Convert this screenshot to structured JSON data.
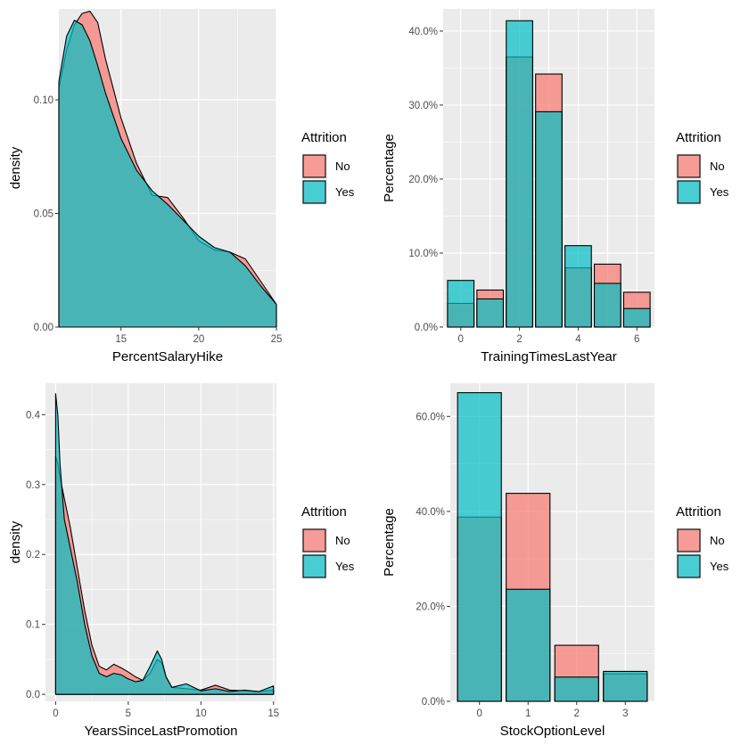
{
  "colors": {
    "panel_bg": "#ebebeb",
    "grid_major": "#ffffff",
    "no_fill": "#F8766D",
    "yes_fill": "#00BFC4",
    "outline": "#000000",
    "tick_text": "#4d4d4d"
  },
  "chart_data": [
    {
      "type": "area",
      "subtype": "density",
      "xlabel": "PercentSalaryHike",
      "ylabel": "density",
      "xlim": [
        11,
        25
      ],
      "ylim": [
        0,
        0.14
      ],
      "x_ticks": [
        15,
        20,
        25
      ],
      "y_ticks": [
        0.0,
        0.05,
        0.1
      ],
      "y_tick_labels": [
        "0.00",
        "0.05",
        "0.10"
      ],
      "legend": {
        "title": "Attrition",
        "position": "right",
        "labels": [
          "No",
          "Yes"
        ]
      },
      "series": [
        {
          "name": "No",
          "x": [
            11,
            11.5,
            12,
            12.5,
            13,
            13.5,
            14,
            15,
            16,
            17,
            18,
            19,
            20,
            21,
            22,
            23,
            24,
            25
          ],
          "values": [
            0.105,
            0.122,
            0.133,
            0.138,
            0.139,
            0.134,
            0.118,
            0.092,
            0.072,
            0.058,
            0.057,
            0.048,
            0.038,
            0.034,
            0.033,
            0.03,
            0.02,
            0.01
          ]
        },
        {
          "name": "Yes",
          "x": [
            11,
            11.5,
            12,
            12.5,
            13,
            13.5,
            14,
            15,
            16,
            17,
            18,
            19,
            20,
            21,
            22,
            23,
            24,
            25
          ],
          "values": [
            0.108,
            0.128,
            0.135,
            0.133,
            0.126,
            0.115,
            0.103,
            0.083,
            0.069,
            0.06,
            0.054,
            0.047,
            0.04,
            0.035,
            0.033,
            0.027,
            0.018,
            0.01
          ]
        }
      ]
    },
    {
      "type": "bar",
      "xlabel": "TrainingTimesLastYear",
      "ylabel": "Percentage",
      "xlim": [
        -0.6,
        6.6
      ],
      "ylim": [
        0,
        0.43
      ],
      "x_ticks": [
        0,
        2,
        4,
        6
      ],
      "y_ticks": [
        0.0,
        0.1,
        0.2,
        0.3,
        0.4
      ],
      "y_tick_labels": [
        "0.0%",
        "10.0%",
        "20.0%",
        "30.0%",
        "40.0%"
      ],
      "legend": {
        "title": "Attrition",
        "position": "right",
        "labels": [
          "No",
          "Yes"
        ]
      },
      "categories": [
        0,
        1,
        2,
        3,
        4,
        5,
        6
      ],
      "series": [
        {
          "name": "No",
          "values": [
            0.032,
            0.05,
            0.365,
            0.342,
            0.08,
            0.085,
            0.047
          ]
        },
        {
          "name": "Yes",
          "values": [
            0.063,
            0.038,
            0.414,
            0.291,
            0.11,
            0.059,
            0.025
          ]
        }
      ]
    },
    {
      "type": "area",
      "subtype": "density",
      "xlabel": "YearsSinceLastPromotion",
      "ylabel": "density",
      "xlim": [
        -0.7,
        15.2
      ],
      "ylim": [
        -0.01,
        0.445
      ],
      "x_ticks": [
        0,
        5,
        10,
        15
      ],
      "y_ticks": [
        0.0,
        0.1,
        0.2,
        0.3,
        0.4
      ],
      "y_tick_labels": [
        "0.0",
        "0.1",
        "0.2",
        "0.3",
        "0.4"
      ],
      "legend": {
        "title": "Attrition",
        "position": "right",
        "labels": [
          "No",
          "Yes"
        ]
      },
      "series": [
        {
          "name": "No",
          "x": [
            0,
            0.15,
            0.3,
            0.6,
            1,
            1.5,
            2,
            2.5,
            3,
            3.5,
            4,
            4.5,
            5,
            5.5,
            6,
            6.5,
            7,
            7.3,
            7.6,
            8,
            9,
            10,
            11,
            12,
            13,
            14,
            15
          ],
          "values": [
            0.34,
            0.33,
            0.31,
            0.28,
            0.24,
            0.18,
            0.12,
            0.07,
            0.04,
            0.035,
            0.043,
            0.038,
            0.032,
            0.025,
            0.02,
            0.03,
            0.05,
            0.045,
            0.025,
            0.01,
            0.008,
            0.006,
            0.013,
            0.006,
            0.005,
            0.004,
            0.006
          ]
        },
        {
          "name": "Yes",
          "x": [
            0,
            0.15,
            0.3,
            0.6,
            1,
            1.5,
            2,
            2.5,
            3,
            3.5,
            4,
            4.5,
            5,
            5.5,
            6,
            6.5,
            7,
            7.3,
            7.6,
            8,
            9,
            10,
            11,
            12,
            13,
            14,
            15
          ],
          "values": [
            0.43,
            0.4,
            0.33,
            0.25,
            0.21,
            0.16,
            0.1,
            0.055,
            0.03,
            0.025,
            0.03,
            0.028,
            0.022,
            0.018,
            0.02,
            0.04,
            0.062,
            0.05,
            0.025,
            0.01,
            0.015,
            0.005,
            0.008,
            0.004,
            0.006,
            0.004,
            0.012
          ]
        }
      ]
    },
    {
      "type": "bar",
      "xlabel": "StockOptionLevel",
      "ylabel": "Percentage",
      "xlim": [
        -0.6,
        3.6
      ],
      "ylim": [
        0,
        0.67
      ],
      "x_ticks": [
        0,
        1,
        2,
        3
      ],
      "y_ticks": [
        0.0,
        0.2,
        0.4,
        0.6
      ],
      "y_tick_labels": [
        "0.0%",
        "20.0%",
        "40.0%",
        "60.0%"
      ],
      "legend": {
        "title": "Attrition",
        "position": "right",
        "labels": [
          "No",
          "Yes"
        ]
      },
      "categories": [
        0,
        1,
        2,
        3
      ],
      "series": [
        {
          "name": "No",
          "values": [
            0.388,
            0.438,
            0.118,
            0.058
          ]
        },
        {
          "name": "Yes",
          "values": [
            0.65,
            0.236,
            0.051,
            0.063
          ]
        }
      ]
    }
  ]
}
